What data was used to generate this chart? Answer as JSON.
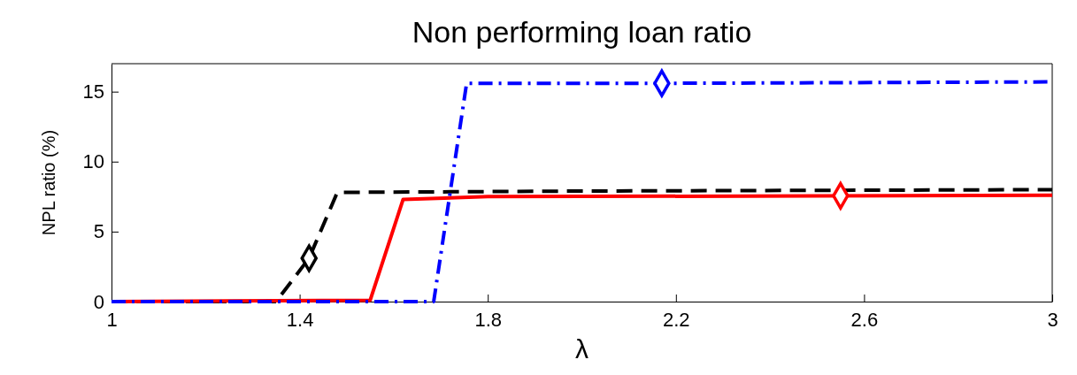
{
  "chart_data": {
    "type": "line",
    "title": "Non performing loan ratio",
    "xlabel": "λ",
    "ylabel": "NPL ratio (%)",
    "xlim": [
      1,
      3
    ],
    "xticks": [
      1,
      1.4,
      1.8,
      2.2,
      2.6,
      3
    ],
    "ylim": [
      0,
      17
    ],
    "yticks": [
      0,
      5,
      10,
      15
    ],
    "grid": false,
    "series": [
      {
        "color": "#000000",
        "line_style": "dashed",
        "x": [
          1,
          1.35,
          1.42,
          1.48,
          2,
          3
        ],
        "values": [
          0,
          0,
          3.1,
          7.8,
          7.9,
          8.0
        ]
      },
      {
        "color": "#ff0000",
        "line_style": "solid",
        "x": [
          1,
          1.55,
          1.62,
          1.8,
          2.5,
          3
        ],
        "values": [
          0,
          0.1,
          7.3,
          7.5,
          7.55,
          7.6
        ]
      },
      {
        "color": "#0000ff",
        "line_style": "dashdot",
        "x": [
          1,
          1.685,
          1.755,
          2.2,
          3
        ],
        "values": [
          0,
          0,
          15.6,
          15.6,
          15.7
        ]
      },
      {
        "type": "scatter",
        "marker": "diamond",
        "color": "#000000",
        "x": [
          1.42
        ],
        "values": [
          3.1
        ]
      },
      {
        "type": "scatter",
        "marker": "diamond",
        "color": "#ff0000",
        "x": [
          2.55
        ],
        "values": [
          7.56
        ]
      },
      {
        "type": "scatter",
        "marker": "diamond",
        "color": "#0000ff",
        "x": [
          2.17
        ],
        "values": [
          15.6
        ]
      }
    ]
  }
}
